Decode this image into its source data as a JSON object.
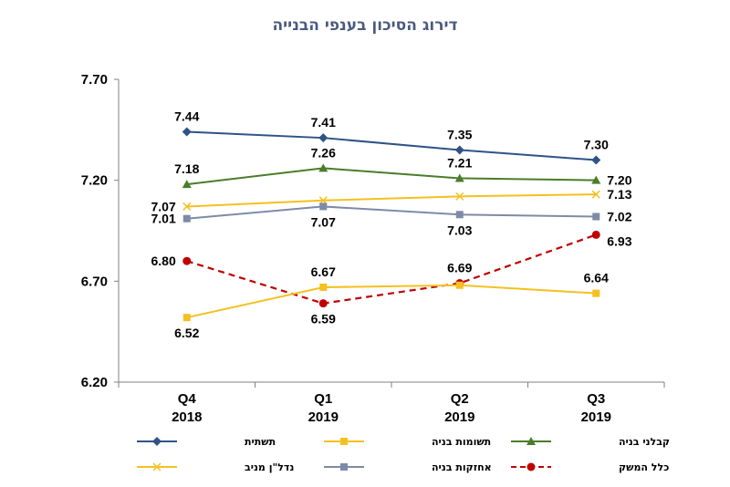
{
  "chart_data": {
    "type": "line",
    "title": "דירוג הסיכון בענפי הבנייה",
    "categories": [
      [
        "Q4",
        "2018"
      ],
      [
        "Q1",
        "2019"
      ],
      [
        "Q2",
        "2019"
      ],
      [
        "Q3",
        "2019"
      ]
    ],
    "ylim": [
      6.2,
      7.7
    ],
    "yticks": [
      "7.70",
      "7.20",
      "6.70",
      "6.20"
    ],
    "grid": false,
    "legend_position": "bottom",
    "series": [
      {
        "name": "תשתית",
        "values": [
          7.44,
          7.41,
          7.35,
          7.3
        ],
        "labels": [
          "7.44",
          "7.41",
          "7.35",
          "7.30"
        ],
        "color": "#2f5387",
        "marker": "diamond",
        "dashed": false,
        "label_pos": [
          "above",
          "above",
          "above",
          "above"
        ]
      },
      {
        "name": "קבלני בניה",
        "values": [
          7.18,
          7.26,
          7.21,
          7.2
        ],
        "labels": [
          "7.18",
          "7.26",
          "7.21",
          "7.20"
        ],
        "color": "#4a7d2a",
        "marker": "triangle",
        "dashed": false,
        "label_pos": [
          "above",
          "above",
          "above",
          "right"
        ]
      },
      {
        "name": "נדל\"ן מניב",
        "values": [
          7.07,
          7.1,
          7.12,
          7.13
        ],
        "labels": [
          "7.07",
          "",
          "",
          "7.13"
        ],
        "color": "#f5c020",
        "marker": "x",
        "dashed": false,
        "label_pos": [
          "left",
          "none",
          "none",
          "right"
        ]
      },
      {
        "name": "אחזקות בניה",
        "values": [
          7.01,
          7.07,
          7.03,
          7.02
        ],
        "labels": [
          "7.01",
          "7.07",
          "7.03",
          "7.02"
        ],
        "color": "#7d8ba8",
        "marker": "square",
        "dashed": false,
        "label_pos": [
          "left",
          "below",
          "below",
          "right"
        ]
      },
      {
        "name": "כלל המשק",
        "values": [
          6.8,
          6.59,
          6.69,
          6.93
        ],
        "labels": [
          "6.80",
          "6.59",
          "6.69",
          "6.93"
        ],
        "color": "#c00000",
        "marker": "circle",
        "dashed": true,
        "label_pos": [
          "left",
          "below",
          "above",
          "below-right"
        ]
      },
      {
        "name": "תשומות בניה",
        "values": [
          6.52,
          6.67,
          6.68,
          6.64
        ],
        "labels": [
          "6.52",
          "6.67",
          "",
          "6.64"
        ],
        "color": "#f5c020",
        "marker": "square",
        "dashed": false,
        "label_pos": [
          "below",
          "above",
          "none",
          "above"
        ]
      }
    ],
    "legend_order": [
      "תשתית",
      "תשומות בניה",
      "קבלני בניה",
      "נדל\"ן מניב",
      "אחזקות בניה",
      "כלל המשק"
    ]
  }
}
